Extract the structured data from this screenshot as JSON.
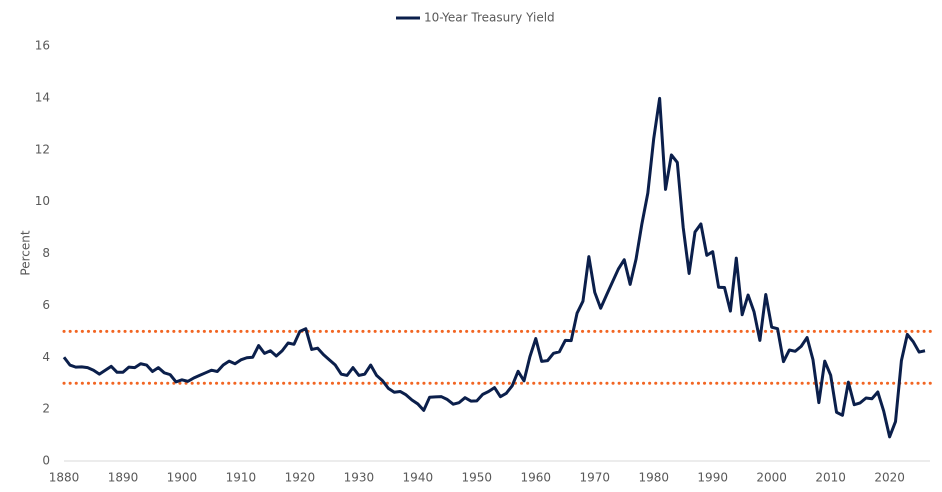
{
  "chart_data": {
    "type": "line",
    "y_label": "Percent",
    "x": [
      1880,
      1881,
      1882,
      1883,
      1884,
      1885,
      1886,
      1887,
      1888,
      1889,
      1890,
      1891,
      1892,
      1893,
      1894,
      1895,
      1896,
      1897,
      1898,
      1899,
      1900,
      1901,
      1902,
      1903,
      1904,
      1905,
      1906,
      1907,
      1908,
      1909,
      1910,
      1911,
      1912,
      1913,
      1914,
      1915,
      1916,
      1917,
      1918,
      1919,
      1920,
      1921,
      1922,
      1923,
      1924,
      1925,
      1926,
      1927,
      1928,
      1929,
      1930,
      1931,
      1932,
      1933,
      1934,
      1935,
      1936,
      1937,
      1938,
      1939,
      1940,
      1941,
      1942,
      1943,
      1944,
      1945,
      1946,
      1947,
      1948,
      1949,
      1950,
      1951,
      1952,
      1953,
      1954,
      1955,
      1956,
      1957,
      1958,
      1959,
      1960,
      1961,
      1962,
      1963,
      1964,
      1965,
      1966,
      1967,
      1968,
      1969,
      1970,
      1971,
      1972,
      1973,
      1974,
      1975,
      1976,
      1977,
      1978,
      1979,
      1980,
      1981,
      1982,
      1983,
      1984,
      1985,
      1986,
      1987,
      1988,
      1989,
      1990,
      1991,
      1992,
      1993,
      1994,
      1995,
      1996,
      1997,
      1998,
      1999,
      2000,
      2001,
      2002,
      2003,
      2004,
      2005,
      2006,
      2007,
      2008,
      2009,
      2010,
      2011,
      2012,
      2013,
      2014,
      2015,
      2016,
      2017,
      2018,
      2019,
      2020,
      2021,
      2022,
      2023,
      2024,
      2025,
      2026
    ],
    "series": [
      {
        "name": "10-Year Treasury Yield",
        "color": "#0b1f4b",
        "values": [
          4.0,
          3.7,
          3.62,
          3.63,
          3.6,
          3.5,
          3.35,
          3.5,
          3.65,
          3.42,
          3.42,
          3.62,
          3.6,
          3.75,
          3.7,
          3.45,
          3.6,
          3.4,
          3.33,
          3.05,
          3.13,
          3.07,
          3.2,
          3.3,
          3.4,
          3.5,
          3.45,
          3.7,
          3.85,
          3.75,
          3.9,
          3.98,
          4.0,
          4.45,
          4.15,
          4.25,
          4.05,
          4.25,
          4.55,
          4.5,
          5.0,
          5.1,
          4.3,
          4.35,
          4.1,
          3.9,
          3.7,
          3.35,
          3.3,
          3.6,
          3.3,
          3.35,
          3.7,
          3.3,
          3.1,
          2.8,
          2.65,
          2.68,
          2.55,
          2.35,
          2.2,
          1.95,
          2.46,
          2.47,
          2.48,
          2.37,
          2.19,
          2.25,
          2.44,
          2.31,
          2.32,
          2.57,
          2.68,
          2.83,
          2.48,
          2.61,
          2.9,
          3.46,
          3.09,
          4.02,
          4.72,
          3.84,
          3.87,
          4.15,
          4.21,
          4.65,
          4.64,
          5.7,
          6.16,
          7.88,
          6.5,
          5.89,
          6.4,
          6.9,
          7.4,
          7.76,
          6.81,
          7.78,
          9.15,
          10.33,
          12.43,
          13.98,
          10.47,
          11.8,
          11.51,
          9.0,
          7.23,
          8.83,
          9.14,
          7.93,
          8.07,
          6.7,
          6.69,
          5.78,
          7.82,
          5.64,
          6.4,
          5.76,
          4.65,
          6.42,
          5.16,
          5.1,
          3.83,
          4.28,
          4.23,
          4.42,
          4.76,
          3.91,
          2.25,
          3.85,
          3.31,
          1.88,
          1.76,
          3.04,
          2.17,
          2.24,
          2.43,
          2.4,
          2.66,
          1.92,
          0.93,
          1.52,
          3.87,
          4.88,
          4.6,
          4.2,
          4.25
        ]
      }
    ],
    "reference_lines": [
      {
        "value": 5,
        "color": "#f26522"
      },
      {
        "value": 3,
        "color": "#f26522"
      }
    ],
    "xlim": [
      1880,
      2026
    ],
    "xticks": [
      1880,
      1890,
      1900,
      1910,
      1920,
      1930,
      1940,
      1950,
      1960,
      1970,
      1980,
      1990,
      2000,
      2010,
      2020
    ],
    "ylim": [
      0,
      16
    ],
    "yticks": [
      0,
      2,
      4,
      6,
      8,
      10,
      12,
      14,
      16
    ],
    "legend": "top"
  }
}
